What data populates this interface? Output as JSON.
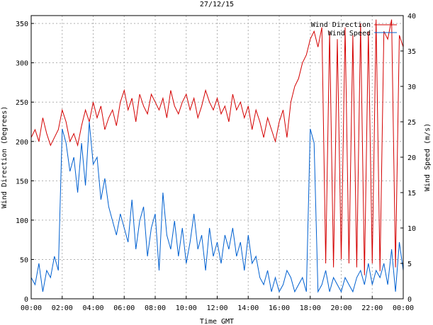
{
  "chart_data": {
    "type": "line",
    "title": "27/12/15",
    "xlabel": "Time GMT",
    "ylabel_left": "Wind Direction (Degrees)",
    "ylabel_right": "Wind Speed (m/s)",
    "x_ticks": [
      "00:00",
      "02:00",
      "04:00",
      "06:00",
      "08:00",
      "10:00",
      "12:00",
      "14:00",
      "16:00",
      "18:00",
      "20:00",
      "22:00",
      "00:00"
    ],
    "x_range_hours": [
      0,
      24
    ],
    "ylim_left": [
      0,
      360
    ],
    "y_ticks_left": [
      0,
      50,
      100,
      150,
      200,
      250,
      300,
      350
    ],
    "ylim_right": [
      0,
      40
    ],
    "y_ticks_right": [
      0,
      5,
      10,
      15,
      20,
      25,
      30,
      35,
      40
    ],
    "grid": true,
    "legend_position": "top-right",
    "series": [
      {
        "name": "Wind Direction",
        "axis": "left",
        "color": "#d40000",
        "x_hours": [
          0,
          0.25,
          0.5,
          0.75,
          1,
          1.25,
          1.5,
          1.75,
          2,
          2.25,
          2.5,
          2.75,
          3,
          3.25,
          3.5,
          3.75,
          4,
          4.25,
          4.5,
          4.75,
          5,
          5.25,
          5.5,
          5.75,
          6,
          6.25,
          6.5,
          6.75,
          7,
          7.25,
          7.5,
          7.75,
          8,
          8.25,
          8.5,
          8.75,
          9,
          9.25,
          9.5,
          9.75,
          10,
          10.25,
          10.5,
          10.75,
          11,
          11.25,
          11.5,
          11.75,
          12,
          12.25,
          12.5,
          12.75,
          13,
          13.25,
          13.5,
          13.75,
          14,
          14.25,
          14.5,
          14.75,
          15,
          15.25,
          15.5,
          15.75,
          16,
          16.25,
          16.5,
          16.75,
          17,
          17.25,
          17.5,
          17.75,
          18,
          18.25,
          18.5,
          18.75,
          19,
          19.25,
          19.5,
          19.75,
          20,
          20.25,
          20.5,
          20.75,
          21,
          21.25,
          21.5,
          21.75,
          22,
          22.25,
          22.5,
          22.75,
          23,
          23.25,
          23.5,
          23.75,
          24
        ],
        "values": [
          205,
          215,
          200,
          230,
          210,
          195,
          205,
          215,
          240,
          225,
          200,
          210,
          195,
          220,
          240,
          225,
          250,
          230,
          245,
          215,
          230,
          240,
          220,
          250,
          265,
          240,
          255,
          225,
          260,
          245,
          235,
          260,
          250,
          240,
          255,
          230,
          265,
          245,
          235,
          250,
          260,
          240,
          255,
          230,
          245,
          265,
          250,
          240,
          255,
          235,
          245,
          225,
          260,
          240,
          250,
          230,
          245,
          215,
          240,
          225,
          205,
          230,
          215,
          200,
          225,
          240,
          205,
          250,
          270,
          280,
          300,
          310,
          330,
          340,
          320,
          345,
          45,
          340,
          40,
          330,
          50,
          345,
          45,
          335,
          40,
          350,
          30,
          340,
          45,
          355,
          35,
          340,
          330,
          355,
          40,
          335,
          320
        ]
      },
      {
        "name": "Wind Speed",
        "axis": "right",
        "color": "#0060d0",
        "x_hours": [
          0,
          0.25,
          0.5,
          0.75,
          1,
          1.25,
          1.5,
          1.75,
          2,
          2.25,
          2.5,
          2.75,
          3,
          3.25,
          3.5,
          3.75,
          4,
          4.25,
          4.5,
          4.75,
          5,
          5.25,
          5.5,
          5.75,
          6,
          6.25,
          6.5,
          6.75,
          7,
          7.25,
          7.5,
          7.75,
          8,
          8.25,
          8.5,
          8.75,
          9,
          9.25,
          9.5,
          9.75,
          10,
          10.25,
          10.5,
          10.75,
          11,
          11.25,
          11.5,
          11.75,
          12,
          12.25,
          12.5,
          12.75,
          13,
          13.25,
          13.5,
          13.75,
          14,
          14.25,
          14.5,
          14.75,
          15,
          15.25,
          15.5,
          15.75,
          16,
          16.25,
          16.5,
          16.75,
          17,
          17.25,
          17.5,
          17.75,
          18,
          18.25,
          18.5,
          18.75,
          19,
          19.25,
          19.5,
          19.75,
          20,
          20.25,
          20.5,
          20.75,
          21,
          21.25,
          21.5,
          21.75,
          22,
          22.25,
          22.5,
          22.75,
          23,
          23.25,
          23.5,
          23.75,
          24
        ],
        "values": [
          3,
          2,
          5,
          1,
          4,
          3,
          6,
          4,
          24,
          22,
          18,
          20,
          15,
          22,
          16,
          25,
          19,
          20,
          14,
          17,
          13,
          11,
          9,
          12,
          10,
          8,
          14,
          7,
          11,
          13,
          6,
          10,
          12,
          4,
          15,
          9,
          7,
          11,
          6,
          10,
          5,
          8,
          12,
          7,
          9,
          4,
          10,
          6,
          8,
          5,
          9,
          7,
          10,
          6,
          8,
          4,
          9,
          5,
          6,
          3,
          2,
          4,
          1,
          3,
          1,
          2,
          4,
          3,
          1,
          2,
          3,
          1,
          24,
          22,
          1,
          2,
          4,
          1,
          3,
          2,
          1,
          3,
          2,
          1,
          3,
          4,
          2,
          5,
          2,
          4,
          3,
          5,
          2,
          7,
          1,
          8,
          4
        ]
      }
    ]
  }
}
